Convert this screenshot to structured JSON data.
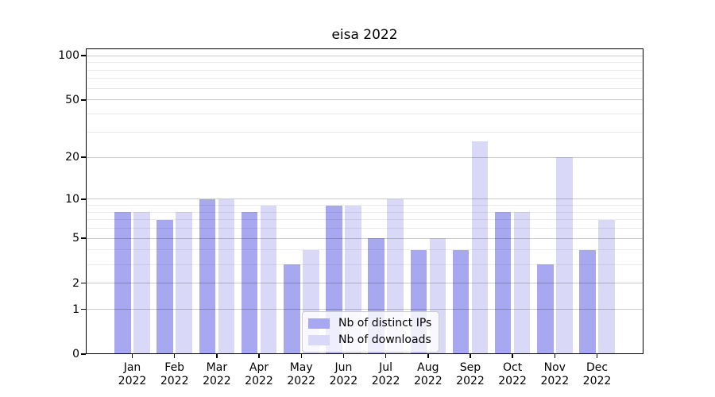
{
  "chart_data": {
    "type": "bar",
    "title": "eisa 2022",
    "categories": [
      "Jan 2022",
      "Feb 2022",
      "Mar 2022",
      "Apr 2022",
      "May 2022",
      "Jun 2022",
      "Jul 2022",
      "Aug 2022",
      "Sep 2022",
      "Oct 2022",
      "Nov 2022",
      "Dec 2022"
    ],
    "series": [
      {
        "name": "Nb of distinct IPs",
        "color": "#a8a8f0",
        "values": [
          8,
          7,
          10,
          8,
          3,
          9,
          5,
          4,
          4,
          8,
          3,
          4
        ]
      },
      {
        "name": "Nb of downloads",
        "color": "#d9d9f7",
        "values": [
          8,
          8,
          10,
          9,
          4,
          9,
          10,
          5,
          26,
          8,
          20,
          7
        ]
      }
    ],
    "xlabel": "",
    "ylabel": "",
    "y_scale": "log1p",
    "ylim": [
      0,
      112
    ],
    "y_tick_labels": [
      0,
      1,
      2,
      5,
      10,
      20,
      50,
      100
    ],
    "y_minor_gridlines": [
      3,
      4,
      6,
      7,
      8,
      9,
      30,
      40,
      60,
      70,
      80,
      90
    ],
    "grid": "horizontal, drawn above bars",
    "legend_position": "lower center",
    "colors": {
      "background": "#ffffff",
      "axis": "#000000",
      "major_grid": "rgba(0,0,0,0.21)",
      "minor_grid": "rgba(0,0,0,0.08)",
      "text": "#000000"
    }
  }
}
